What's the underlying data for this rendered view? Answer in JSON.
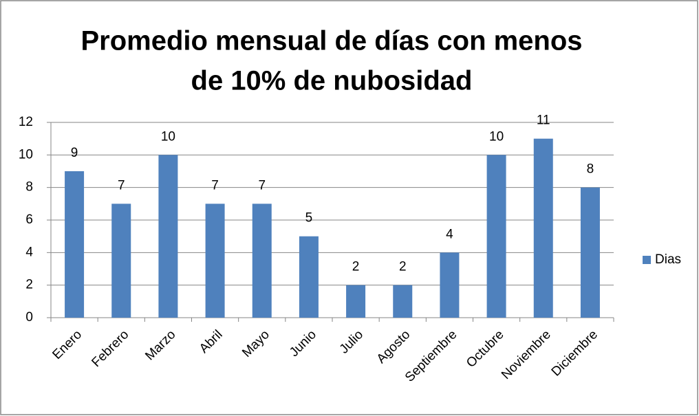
{
  "chart_data": {
    "type": "bar",
    "title": [
      "Promedio mensual de días con menos",
      "de 10% de nubosidad"
    ],
    "categories": [
      "Enero",
      "Febrero",
      "Marzo",
      "Abril",
      "Mayo",
      "Junio",
      "Julio",
      "Agosto",
      "Septiembre",
      "Octubre",
      "Noviembre",
      "Diciembre"
    ],
    "series": [
      {
        "name": "Dias",
        "color": "#4f81bd",
        "values": [
          9,
          7,
          10,
          7,
          7,
          5,
          2,
          2,
          4,
          10,
          11,
          8
        ]
      }
    ],
    "ylim": [
      0,
      12
    ],
    "yticks": [
      0,
      2,
      4,
      6,
      8,
      10,
      12
    ],
    "grid": true,
    "legend": "right"
  }
}
